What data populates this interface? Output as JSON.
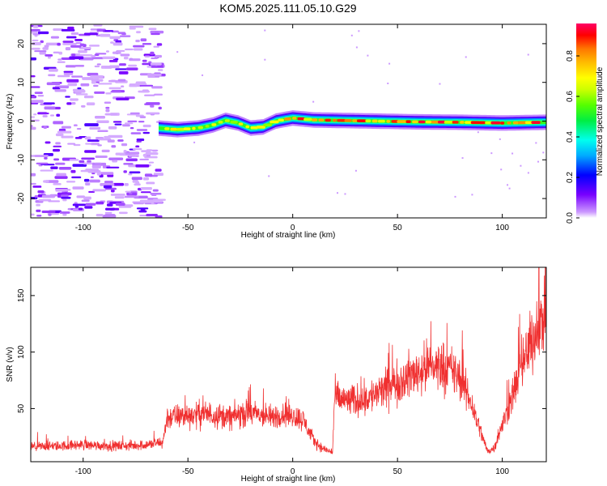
{
  "title": "KOM5.2025.111.05.10.G29",
  "chart_data": [
    {
      "type": "heatmap",
      "xlabel": "Height of straight line (km)",
      "ylabel": "Frequency (Hz)",
      "xlim": [
        -125,
        121
      ],
      "ylim": [
        -25,
        25
      ],
      "xticks": [
        -100,
        -50,
        0,
        50,
        100
      ],
      "yticks": [
        -20,
        -10,
        0,
        10,
        20
      ],
      "colorbar": {
        "label": "Normalized spectral amplitude",
        "ticks": [
          0.0,
          0.2,
          0.4,
          0.6,
          0.8
        ],
        "range": [
          0,
          0.96
        ]
      },
      "ridge": [
        {
          "x": -64,
          "f": -1.8
        },
        {
          "x": -55,
          "f": -2.2
        },
        {
          "x": -45,
          "f": -1.8
        },
        {
          "x": -38,
          "f": -1.0
        },
        {
          "x": -32,
          "f": 0.2
        },
        {
          "x": -26,
          "f": -0.5
        },
        {
          "x": -20,
          "f": -1.8
        },
        {
          "x": -14,
          "f": -1.5
        },
        {
          "x": -8,
          "f": 0.0
        },
        {
          "x": 0,
          "f": 0.8
        },
        {
          "x": 10,
          "f": 0.3
        },
        {
          "x": 20,
          "f": 0.2
        },
        {
          "x": 40,
          "f": 0.0
        },
        {
          "x": 60,
          "f": -0.2
        },
        {
          "x": 80,
          "f": -0.3
        },
        {
          "x": 100,
          "f": -0.5
        },
        {
          "x": 121,
          "f": -0.3
        }
      ]
    },
    {
      "type": "line",
      "xlabel": "Height of straight line (km)",
      "ylabel": "SNR (v/v)",
      "xlim": [
        -125,
        121
      ],
      "ylim": [
        3,
        175
      ],
      "xticks": [
        -100,
        -50,
        0,
        50,
        100
      ],
      "yticks": [
        50,
        100,
        150
      ],
      "color": "#f03030",
      "series": [
        {
          "x": [
            -125,
            -110,
            -100,
            -90,
            -80,
            -70,
            -62,
            -60,
            -55,
            -50,
            -45,
            -40,
            -35,
            -30,
            -25,
            -20,
            -15,
            -10,
            -5,
            0,
            5,
            10,
            14,
            18,
            19,
            20,
            25,
            30,
            35,
            40,
            45,
            50,
            55,
            60,
            65,
            70,
            75,
            80,
            85,
            90,
            93,
            96,
            100,
            105,
            110,
            115,
            121
          ],
          "values": [
            16,
            17,
            18,
            17,
            17,
            18,
            20,
            42,
            43,
            44,
            45,
            45,
            44,
            42,
            45,
            46,
            44,
            42,
            45,
            44,
            40,
            22,
            15,
            12,
            12,
            60,
            57,
            57,
            59,
            63,
            68,
            73,
            78,
            83,
            87,
            88,
            85,
            76,
            56,
            28,
            12,
            15,
            35,
            63,
            90,
            115,
            135
          ]
        }
      ]
    }
  ]
}
